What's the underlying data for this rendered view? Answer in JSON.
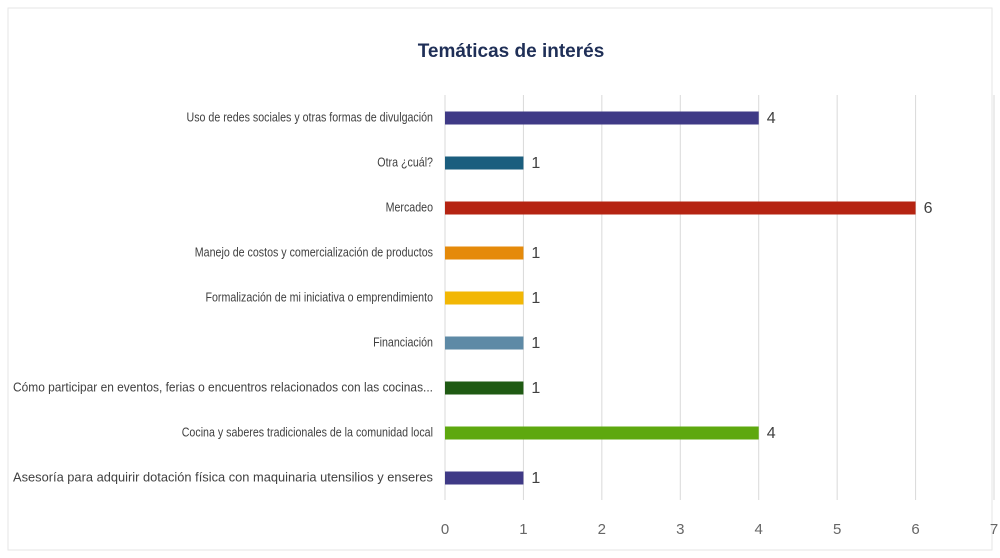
{
  "chart_data": {
    "type": "bar",
    "orientation": "horizontal",
    "title": "Temáticas de interés",
    "categories": [
      "Uso de redes sociales y otras formas de divulgación",
      "Otra ¿cuál?",
      "Mercadeo",
      "Manejo de costos y comercialización de productos",
      "Formalización de mi iniciativa o emprendimiento",
      "Financiación",
      "Cómo participar en eventos, ferias o encuentros relacionados con las cocinas...",
      "Cocina y saberes tradicionales de la comunidad local",
      "Asesoría para adquirir dotación física con maquinaria utensilios y enseres"
    ],
    "values": [
      4,
      1,
      6,
      1,
      1,
      1,
      1,
      4,
      1
    ],
    "colors": [
      "#3f3a86",
      "#1b5e7e",
      "#b52412",
      "#e58a0a",
      "#f2b705",
      "#5e8aa6",
      "#1f5a13",
      "#5ea80f",
      "#3f3a86"
    ],
    "xlim": [
      0,
      7
    ],
    "xticks": [
      0,
      1,
      2,
      3,
      4,
      5,
      6,
      7
    ],
    "grid": true
  }
}
